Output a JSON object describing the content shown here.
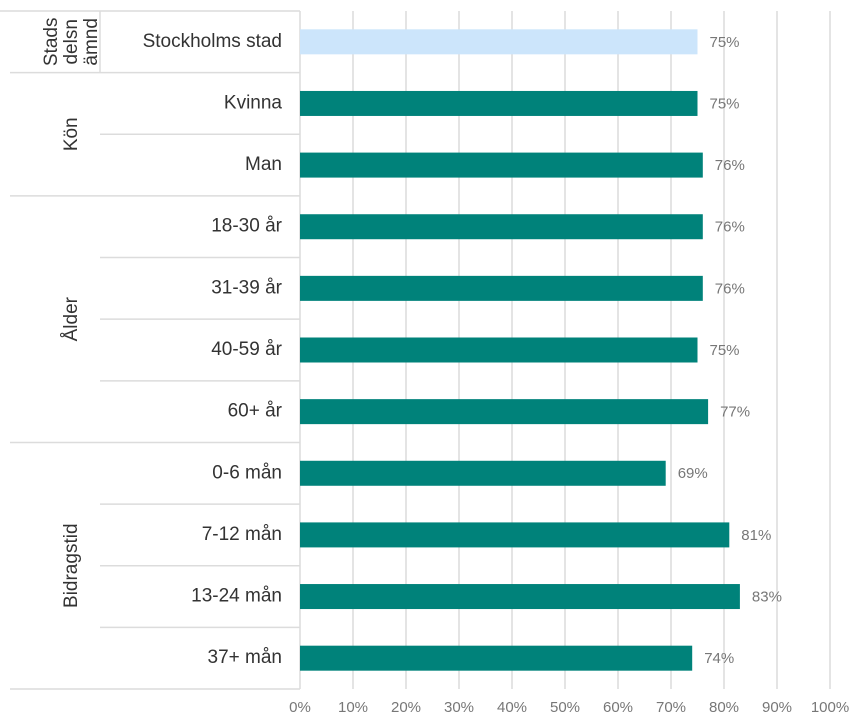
{
  "chart_data": {
    "type": "bar",
    "groups": [
      {
        "name": [
          "Stads",
          "delsn",
          "ämnd"
        ],
        "color": "#cce5fb",
        "categories": [
          "Stockholms stad"
        ],
        "values": [
          75
        ]
      },
      {
        "name": [
          "Kön"
        ],
        "color": "#00827a",
        "categories": [
          "Kvinna",
          "Man"
        ],
        "values": [
          75,
          76
        ]
      },
      {
        "name": [
          "Ålder"
        ],
        "color": "#00827a",
        "categories": [
          "18-30 år",
          "31-39 år",
          "40-59 år",
          "60+ år"
        ],
        "values": [
          76,
          76,
          75,
          77
        ]
      },
      {
        "name": [
          "Bidragstid"
        ],
        "color": "#00827a",
        "categories": [
          "0-6 mån",
          "7-12 mån",
          "13-24 mån",
          "37+ mån"
        ],
        "values": [
          69,
          81,
          83,
          74
        ]
      }
    ],
    "value_labels": [
      [
        "75%"
      ],
      [
        "75%",
        "76%"
      ],
      [
        "76%",
        "76%",
        "75%",
        "77%"
      ],
      [
        "69%",
        "81%",
        "83%",
        "74%"
      ]
    ],
    "xlim": [
      0,
      100
    ],
    "xticks": [
      {
        "value": 0,
        "label": "0%"
      },
      {
        "value": 10,
        "label": "10%"
      },
      {
        "value": 20,
        "label": "20%"
      },
      {
        "value": 30,
        "label": "30%"
      },
      {
        "value": 40,
        "label": "40%"
      },
      {
        "value": 50,
        "label": "50%"
      },
      {
        "value": 60,
        "label": "60%"
      },
      {
        "value": 70,
        "label": "70%"
      },
      {
        "value": 80,
        "label": "80%"
      },
      {
        "value": 90,
        "label": "90%"
      },
      {
        "value": 100,
        "label": "100%"
      }
    ],
    "grid": true
  }
}
